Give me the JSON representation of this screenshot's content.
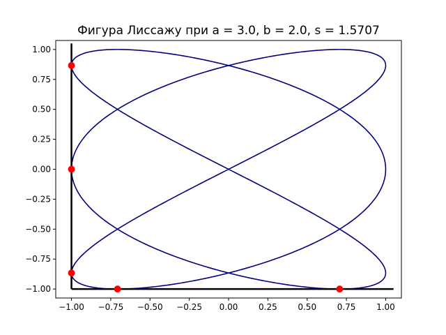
{
  "chart_data": {
    "type": "line",
    "title": "Фигура Лиссажу при a = 3.0, b = 2.0, s = 1.5707",
    "xlabel": "",
    "ylabel": "",
    "xlim": [
      -1.1,
      1.1
    ],
    "ylim": [
      -1.075,
      1.075
    ],
    "grid": false,
    "x_ticks": [
      -1.0,
      -0.75,
      -0.5,
      -0.25,
      0.0,
      0.25,
      0.5,
      0.75,
      1.0
    ],
    "x_tick_labels": [
      "−1.00",
      "−0.75",
      "−0.50",
      "−0.25",
      "0.00",
      "0.25",
      "0.50",
      "0.75",
      "1.00"
    ],
    "y_ticks": [
      -1.0,
      -0.75,
      -0.5,
      -0.25,
      0.0,
      0.25,
      0.5,
      0.75,
      1.0
    ],
    "y_tick_labels": [
      "−1.00",
      "−0.75",
      "−0.50",
      "−0.25",
      "0.00",
      "0.25",
      "0.50",
      "0.75",
      "1.00"
    ],
    "curve": {
      "equation_x": "sin(3t + 1.5707)",
      "equation_y": "sin(2t)",
      "color": "#00007f"
    },
    "axes_lines": {
      "color": "#000000",
      "vertical": {
        "x": -1.0,
        "y_from": -1.0,
        "y_to": 1.05
      },
      "horizontal": {
        "y": -1.0,
        "x_from": -1.0,
        "x_to": 1.05
      }
    },
    "markers": {
      "color": "#ff0000",
      "points": [
        {
          "x": -1.0,
          "y": 0.866
        },
        {
          "x": -1.0,
          "y": 0.0
        },
        {
          "x": -1.0,
          "y": -0.866
        },
        {
          "x": -0.707,
          "y": -1.0
        },
        {
          "x": 0.707,
          "y": -1.0
        }
      ]
    }
  }
}
